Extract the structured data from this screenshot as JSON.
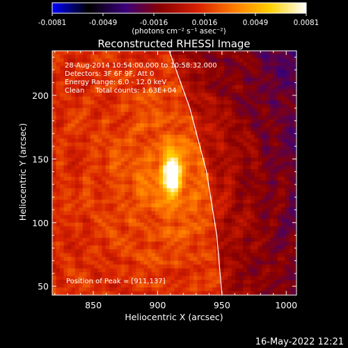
{
  "chart_data": {
    "type": "heatmap",
    "title": "Reconstructed RHESSI Image",
    "xlabel": "Heliocentric X (arcsec)",
    "ylabel": "Heliocentric Y (arcsec)",
    "xlim": [
      818,
      1008
    ],
    "ylim": [
      43,
      235
    ],
    "x_ticks": [
      850,
      900,
      950,
      1000
    ],
    "y_ticks": [
      50,
      100,
      150,
      200
    ],
    "colorbar": {
      "range": [
        -0.0081,
        0.0081
      ],
      "ticks": [
        "-0.0081",
        "-0.0049",
        "-0.0016",
        "0.0016",
        "0.0049",
        "0.0081"
      ],
      "unit_label": "(photons cm⁻² s⁻¹ asec⁻²)",
      "stops": [
        "#0000ff",
        "#000000",
        "#3a007a",
        "#8a0000",
        "#d62000",
        "#ff7a00",
        "#ffd000",
        "#ffffff"
      ]
    },
    "source_peak": {
      "x": 911,
      "y": 137,
      "value": 0.0081
    },
    "limb": {
      "points": [
        [
          909,
          235
        ],
        [
          925,
          190
        ],
        [
          938,
          140
        ],
        [
          946,
          90
        ],
        [
          950,
          43
        ]
      ]
    },
    "annotations": [
      "28-Aug-2014 10:54:00.000 to 10:58:32.000",
      "Detectors: 3F 6F 9F, Att 0",
      "Energy Range: 6.0 - 12.0 keV",
      "Clean     Total counts: 1.63E+04",
      "Position of Peak = [911,137]"
    ]
  },
  "footer": {
    "timestamp": "16-May-2022 12:21"
  }
}
